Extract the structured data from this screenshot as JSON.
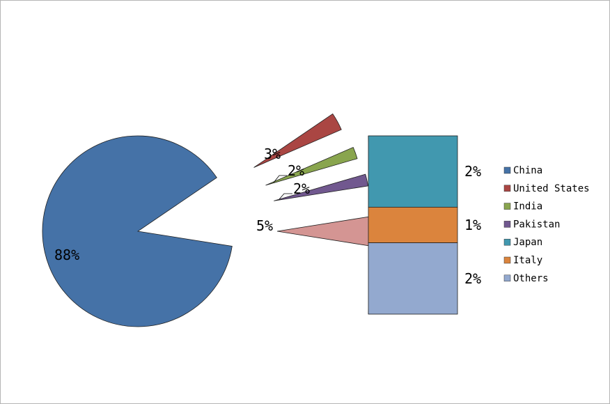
{
  "chart_data": {
    "type": "bar-of-pie",
    "title": "",
    "pie": {
      "categories": [
        "China",
        "United States",
        "India",
        "Pakistan",
        "Other"
      ],
      "values": [
        88,
        3,
        2,
        2,
        5
      ],
      "labels": [
        "88%",
        "3%",
        "2%",
        "2%",
        "5%"
      ],
      "colors": [
        "#4572a7",
        "#aa4643",
        "#89a54e",
        "#71588f",
        "#d49593"
      ]
    },
    "bar": {
      "categories": [
        "Japan",
        "Italy",
        "Others"
      ],
      "values": [
        2,
        1,
        2
      ],
      "labels": [
        "2%",
        "1%",
        "2%"
      ],
      "colors": [
        "#4198af",
        "#db843d",
        "#93a9cf"
      ]
    },
    "legend": {
      "position": "right",
      "entries": [
        {
          "name": "China",
          "color": "#4572a7"
        },
        {
          "name": "United States",
          "color": "#aa4643"
        },
        {
          "name": "India",
          "color": "#89a54e"
        },
        {
          "name": "Pakistan",
          "color": "#71588f"
        },
        {
          "name": "Japan",
          "color": "#4198af"
        },
        {
          "name": "Italy",
          "color": "#db843d"
        },
        {
          "name": "Others",
          "color": "#93a9cf"
        }
      ]
    }
  }
}
